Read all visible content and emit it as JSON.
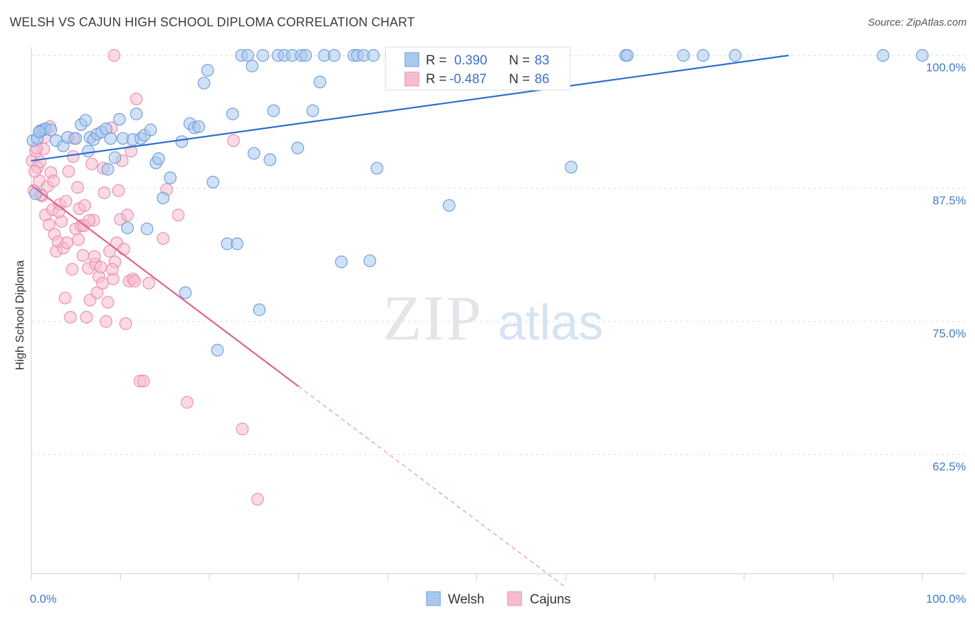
{
  "title": "WELSH VS CAJUN HIGH SCHOOL DIPLOMA CORRELATION CHART",
  "source": "Source: ZipAtlas.com",
  "watermark": {
    "zip": "ZIP",
    "atlas": "atlas"
  },
  "legend": {
    "welsh": {
      "r_label": "R =",
      "r_value": "0.390",
      "n_label": "N =",
      "n_value": "83"
    },
    "cajun": {
      "r_label": "R =",
      "r_value": "-0.487",
      "n_label": "N =",
      "n_value": "86"
    }
  },
  "bottom_legend": {
    "welsh": "Welsh",
    "cajun": "Cajuns"
  },
  "colors": {
    "welsh_fill": "#a9c8ee",
    "welsh_stroke": "#6f9fdc",
    "welsh_line": "#2a6fcc",
    "cajun_fill": "#f6bcd0",
    "cajun_stroke": "#ec8fb0",
    "cajun_line": "#e0608e",
    "tick_label": "#3f7ac8",
    "grid": "#d9dde3"
  },
  "chart_data": {
    "type": "scatter",
    "title": "WELSH VS CAJUN HIGH SCHOOL DIPLOMA CORRELATION CHART",
    "xlabel": "",
    "ylabel": "High School Diploma",
    "xlim": [
      0,
      100
    ],
    "ylim": [
      51.5,
      101
    ],
    "x_tick_labels": [
      "0.0%",
      "100.0%"
    ],
    "y_ticks": [
      62.5,
      75.0,
      87.5,
      100.0
    ],
    "y_tick_labels": [
      "62.5%",
      "75.0%",
      "87.5%",
      "100.0%"
    ],
    "grid": true,
    "legend_position": "top-center",
    "series": [
      {
        "name": "Welsh",
        "trend": {
          "x": [
            0,
            85
          ],
          "y": [
            90.1,
            100.0
          ]
        },
        "points": [
          [
            0.2,
            92.0
          ],
          [
            0.5,
            87.0
          ],
          [
            0.7,
            92.2
          ],
          [
            1.0,
            92.9
          ],
          [
            1.3,
            93.0
          ],
          [
            1.6,
            93.1
          ],
          [
            2.2,
            93.0
          ],
          [
            2.8,
            92.0
          ],
          [
            3.6,
            91.5
          ],
          [
            4.1,
            92.3
          ],
          [
            5.0,
            92.2
          ],
          [
            5.6,
            93.5
          ],
          [
            6.1,
            93.9
          ],
          [
            6.4,
            91.0
          ],
          [
            6.6,
            92.3
          ],
          [
            7.0,
            92.1
          ],
          [
            7.4,
            92.6
          ],
          [
            7.9,
            92.8
          ],
          [
            8.4,
            93.1
          ],
          [
            8.6,
            89.3
          ],
          [
            8.9,
            92.2
          ],
          [
            9.4,
            90.4
          ],
          [
            9.9,
            94.0
          ],
          [
            10.3,
            92.2
          ],
          [
            10.8,
            83.8
          ],
          [
            11.4,
            92.1
          ],
          [
            11.8,
            94.5
          ],
          [
            12.3,
            92.2
          ],
          [
            12.7,
            92.5
          ],
          [
            13.0,
            83.7
          ],
          [
            13.4,
            93.0
          ],
          [
            14.0,
            89.9
          ],
          [
            14.3,
            90.3
          ],
          [
            14.8,
            86.6
          ],
          [
            15.6,
            88.5
          ],
          [
            16.9,
            91.9
          ],
          [
            17.3,
            77.7
          ],
          [
            17.8,
            93.6
          ],
          [
            18.3,
            93.2
          ],
          [
            18.8,
            93.3
          ],
          [
            19.4,
            97.4
          ],
          [
            19.8,
            98.6
          ],
          [
            20.4,
            88.1
          ],
          [
            20.9,
            72.3
          ],
          [
            22.0,
            82.3
          ],
          [
            22.6,
            94.5
          ],
          [
            23.1,
            82.3
          ],
          [
            23.6,
            100.0
          ],
          [
            24.3,
            100.0
          ],
          [
            24.8,
            99.0
          ],
          [
            25.0,
            90.8
          ],
          [
            25.6,
            76.1
          ],
          [
            26.0,
            100.0
          ],
          [
            26.8,
            90.2
          ],
          [
            27.2,
            94.8
          ],
          [
            27.7,
            100.0
          ],
          [
            28.4,
            100.0
          ],
          [
            29.3,
            100.0
          ],
          [
            29.9,
            91.3
          ],
          [
            30.3,
            100.0
          ],
          [
            30.8,
            100.0
          ],
          [
            31.6,
            94.8
          ],
          [
            32.4,
            97.5
          ],
          [
            32.9,
            100.0
          ],
          [
            34.0,
            100.0
          ],
          [
            34.8,
            80.6
          ],
          [
            36.2,
            100.0
          ],
          [
            36.6,
            100.0
          ],
          [
            37.3,
            100.0
          ],
          [
            38.0,
            80.7
          ],
          [
            38.4,
            100.0
          ],
          [
            38.8,
            89.4
          ],
          [
            40.4,
            100.0
          ],
          [
            46.9,
            85.9
          ],
          [
            60.6,
            89.5
          ],
          [
            66.7,
            100.0
          ],
          [
            66.9,
            100.0
          ],
          [
            73.2,
            100.0
          ],
          [
            75.4,
            100.0
          ],
          [
            79.0,
            100.0
          ],
          [
            95.6,
            100.0
          ],
          [
            100.0,
            100.0
          ],
          [
            0.9,
            92.8
          ]
        ]
      },
      {
        "name": "Cajuns",
        "trend": {
          "x": [
            0,
            30
          ],
          "y": [
            87.8,
            68.9
          ]
        },
        "trend_dashed": {
          "x": [
            30,
            60
          ],
          "y": [
            68.9,
            50.0
          ]
        },
        "points": [
          [
            0.1,
            90.1
          ],
          [
            0.3,
            87.3
          ],
          [
            0.5,
            91.0
          ],
          [
            0.7,
            89.5
          ],
          [
            0.9,
            88.2
          ],
          [
            1.0,
            90.0
          ],
          [
            1.2,
            86.8
          ],
          [
            1.4,
            91.2
          ],
          [
            1.6,
            85.0
          ],
          [
            1.8,
            87.7
          ],
          [
            2.0,
            84.1
          ],
          [
            2.2,
            89.0
          ],
          [
            2.4,
            85.5
          ],
          [
            2.6,
            83.2
          ],
          [
            2.8,
            81.6
          ],
          [
            3.0,
            82.5
          ],
          [
            3.2,
            86.0
          ],
          [
            3.4,
            84.4
          ],
          [
            3.6,
            81.9
          ],
          [
            3.8,
            77.2
          ],
          [
            4.0,
            82.4
          ],
          [
            4.2,
            89.1
          ],
          [
            4.4,
            75.4
          ],
          [
            4.6,
            79.9
          ],
          [
            4.8,
            92.2
          ],
          [
            5.0,
            83.7
          ],
          [
            5.2,
            87.6
          ],
          [
            5.4,
            85.6
          ],
          [
            5.6,
            84.0
          ],
          [
            5.8,
            81.2
          ],
          [
            6.0,
            85.9
          ],
          [
            6.2,
            75.4
          ],
          [
            6.4,
            80.0
          ],
          [
            6.6,
            77.0
          ],
          [
            6.8,
            89.8
          ],
          [
            7.0,
            84.5
          ],
          [
            7.2,
            80.4
          ],
          [
            7.4,
            77.7
          ],
          [
            7.6,
            79.2
          ],
          [
            7.8,
            80.1
          ],
          [
            8.0,
            78.6
          ],
          [
            8.2,
            87.1
          ],
          [
            8.4,
            75.0
          ],
          [
            8.6,
            76.8
          ],
          [
            8.8,
            81.6
          ],
          [
            9.0,
            93.2
          ],
          [
            9.2,
            79.0
          ],
          [
            9.4,
            80.6
          ],
          [
            9.6,
            82.4
          ],
          [
            9.8,
            87.3
          ],
          [
            10.0,
            84.6
          ],
          [
            10.2,
            90.1
          ],
          [
            10.4,
            81.8
          ],
          [
            10.6,
            74.8
          ],
          [
            10.8,
            85.0
          ],
          [
            11.0,
            78.8
          ],
          [
            11.2,
            91.0
          ],
          [
            11.4,
            79.0
          ],
          [
            11.6,
            78.8
          ],
          [
            11.8,
            95.9
          ],
          [
            12.2,
            69.4
          ],
          [
            12.6,
            69.4
          ],
          [
            13.2,
            78.6
          ],
          [
            14.8,
            82.8
          ],
          [
            15.2,
            87.4
          ],
          [
            16.5,
            85.0
          ],
          [
            17.5,
            67.4
          ],
          [
            22.7,
            92.0
          ],
          [
            23.7,
            64.9
          ],
          [
            25.4,
            58.3
          ],
          [
            9.3,
            100.0
          ],
          [
            0.4,
            89.1
          ],
          [
            1.1,
            86.9
          ],
          [
            1.5,
            92.3
          ],
          [
            2.5,
            88.2
          ],
          [
            3.1,
            85.3
          ],
          [
            3.9,
            86.3
          ],
          [
            5.3,
            82.7
          ],
          [
            5.9,
            84.0
          ],
          [
            7.1,
            81.1
          ],
          [
            8.1,
            89.4
          ],
          [
            9.1,
            79.9
          ],
          [
            0.6,
            91.3
          ],
          [
            2.1,
            93.3
          ],
          [
            4.7,
            90.5
          ],
          [
            6.5,
            84.5
          ]
        ]
      }
    ]
  }
}
